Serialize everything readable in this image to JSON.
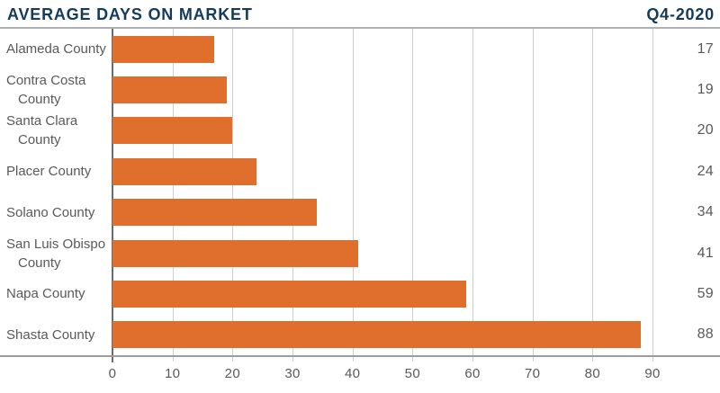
{
  "header": {
    "title": "AVERAGE DAYS ON MARKET",
    "period": "Q4-2020"
  },
  "chart_data": {
    "type": "bar",
    "orientation": "horizontal",
    "title": "AVERAGE DAYS ON MARKET",
    "subtitle": "Q4-2020",
    "categories": [
      "Alameda County",
      "Contra Costa County",
      "Santa Clara County",
      "Placer County",
      "Solano County",
      "San Luis Obispo County",
      "Napa County",
      "Shasta County"
    ],
    "category_label_lines": [
      [
        "Alameda County"
      ],
      [
        "Contra Costa",
        "County"
      ],
      [
        "Santa Clara",
        "County"
      ],
      [
        "Placer County"
      ],
      [
        "Solano County"
      ],
      [
        "San Luis Obispo",
        "County"
      ],
      [
        "Napa County"
      ],
      [
        "Shasta County"
      ]
    ],
    "values": [
      17,
      19,
      20,
      24,
      34,
      41,
      59,
      88
    ],
    "value_labels": [
      "17",
      "19",
      "20",
      "24",
      "34",
      "41",
      "59",
      "88"
    ],
    "x_ticks": [
      0,
      10,
      20,
      30,
      40,
      50,
      60,
      70,
      80,
      90
    ],
    "xlim": [
      0,
      101.25
    ],
    "xlabel": "",
    "ylabel": "",
    "grid": true,
    "legend": "none",
    "value_labels_position": "right"
  },
  "colors": {
    "bar": "#E06E2D",
    "title_navy": "#143A5C",
    "text_gray": "#58595B",
    "gridline": "#CDCED0",
    "zero_line": "#6A6B6D",
    "axis_line": "#9B9DA0",
    "header_rule": "#AEB0B2"
  }
}
